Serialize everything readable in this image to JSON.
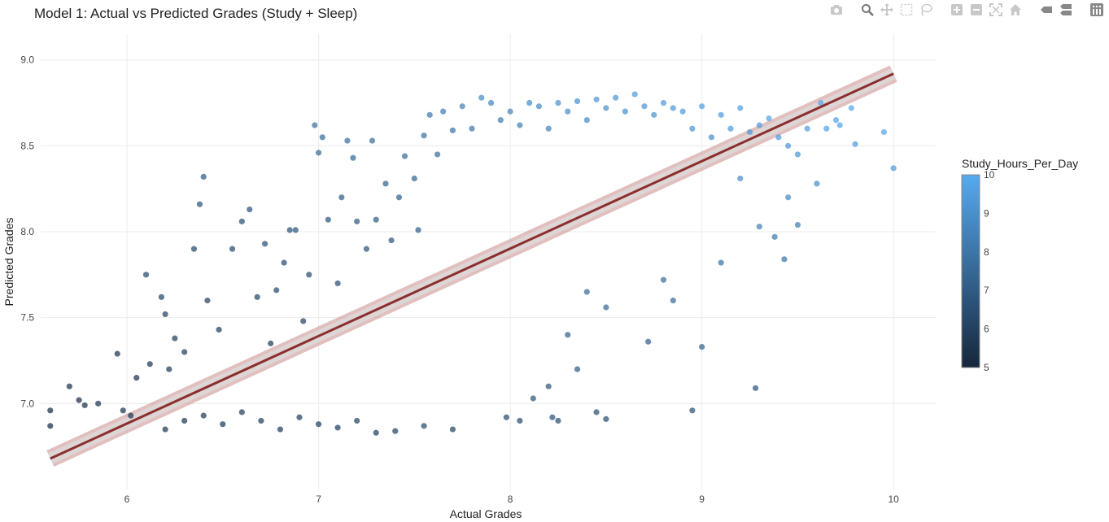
{
  "chart_data": {
    "type": "scatter",
    "title": "Model 1: Actual vs Predicted Grades (Study + Sleep)",
    "xlabel": "Actual Grades",
    "ylabel": "Predicted Grades",
    "xlim": [
      5.55,
      10.22
    ],
    "ylim": [
      6.5,
      9.15
    ],
    "x_ticks": [
      "6",
      "7",
      "8",
      "9",
      "10"
    ],
    "y_ticks": [
      "7.0",
      "7.5",
      "8.0",
      "8.5",
      "9.0"
    ],
    "grid": true,
    "colorbar": {
      "title": "Study_Hours_Per_Day",
      "range": [
        5,
        10
      ],
      "ticks": [
        "5",
        "6",
        "7",
        "8",
        "9",
        "10"
      ],
      "color_low": "#16263b",
      "color_high": "#56aaf0"
    },
    "trend_line": {
      "x": [
        5.6,
        10.0
      ],
      "y": [
        6.68,
        8.92
      ],
      "color": "#8b2e2e",
      "band_color": "#c98a8a"
    },
    "points": [
      [
        5.6,
        6.96,
        5.3
      ],
      [
        5.6,
        6.87,
        5.2
      ],
      [
        5.7,
        7.1,
        5.4
      ],
      [
        5.75,
        7.02,
        5.3
      ],
      [
        5.78,
        6.99,
        5.5
      ],
      [
        5.85,
        7.0,
        5.6
      ],
      [
        5.95,
        7.29,
        5.5
      ],
      [
        5.98,
        6.96,
        5.4
      ],
      [
        6.02,
        6.93,
        5.6
      ],
      [
        6.05,
        7.15,
        5.5
      ],
      [
        6.1,
        7.75,
        6.3
      ],
      [
        6.12,
        7.23,
        5.7
      ],
      [
        6.18,
        7.62,
        6.2
      ],
      [
        6.2,
        7.52,
        6.0
      ],
      [
        6.22,
        7.2,
        5.8
      ],
      [
        6.25,
        7.38,
        5.9
      ],
      [
        6.3,
        7.3,
        5.9
      ],
      [
        6.35,
        7.9,
        6.3
      ],
      [
        6.38,
        8.16,
        6.8
      ],
      [
        6.4,
        8.32,
        7.0
      ],
      [
        6.42,
        7.6,
        6.1
      ],
      [
        6.48,
        7.43,
        6.0
      ],
      [
        6.55,
        7.9,
        6.4
      ],
      [
        6.6,
        8.06,
        6.6
      ],
      [
        6.64,
        8.13,
        6.7
      ],
      [
        6.68,
        7.62,
        6.2
      ],
      [
        6.72,
        7.93,
        6.6
      ],
      [
        6.75,
        7.35,
        5.9
      ],
      [
        6.78,
        7.66,
        6.4
      ],
      [
        6.82,
        7.82,
        6.5
      ],
      [
        6.85,
        8.01,
        6.7
      ],
      [
        6.88,
        8.01,
        6.8
      ],
      [
        6.92,
        7.48,
        6.1
      ],
      [
        6.95,
        7.75,
        6.5
      ],
      [
        6.98,
        8.62,
        7.8
      ],
      [
        7.0,
        8.46,
        7.6
      ],
      [
        7.02,
        8.55,
        7.7
      ],
      [
        7.05,
        8.07,
        6.9
      ],
      [
        7.1,
        7.7,
        6.5
      ],
      [
        7.12,
        8.2,
        7.1
      ],
      [
        7.15,
        8.53,
        7.7
      ],
      [
        7.18,
        8.43,
        7.5
      ],
      [
        7.2,
        8.06,
        7.0
      ],
      [
        7.25,
        7.9,
        6.8
      ],
      [
        7.28,
        8.53,
        7.7
      ],
      [
        7.3,
        8.07,
        7.0
      ],
      [
        7.35,
        8.28,
        7.3
      ],
      [
        7.38,
        7.95,
        6.9
      ],
      [
        7.42,
        8.2,
        7.2
      ],
      [
        7.45,
        8.44,
        7.6
      ],
      [
        7.5,
        8.31,
        7.4
      ],
      [
        7.52,
        8.01,
        7.1
      ],
      [
        7.55,
        8.56,
        7.9
      ],
      [
        7.58,
        8.68,
        8.2
      ],
      [
        7.62,
        8.45,
        7.7
      ],
      [
        7.65,
        8.7,
        8.3
      ],
      [
        7.7,
        8.59,
        8.0
      ],
      [
        7.75,
        8.73,
        8.5
      ],
      [
        7.8,
        8.6,
        8.1
      ],
      [
        7.85,
        8.78,
        8.8
      ],
      [
        7.9,
        8.75,
        8.6
      ],
      [
        7.95,
        8.65,
        8.3
      ],
      [
        8.0,
        8.7,
        8.6
      ],
      [
        8.05,
        8.62,
        8.4
      ],
      [
        8.1,
        8.75,
        8.9
      ],
      [
        8.15,
        8.73,
        8.8
      ],
      [
        8.2,
        8.6,
        8.5
      ],
      [
        8.25,
        8.75,
        9.0
      ],
      [
        8.3,
        8.7,
        8.9
      ],
      [
        8.35,
        8.76,
        9.1
      ],
      [
        8.4,
        8.65,
        8.8
      ],
      [
        8.45,
        8.77,
        9.2
      ],
      [
        8.5,
        8.72,
        9.0
      ],
      [
        8.55,
        8.78,
        9.3
      ],
      [
        8.6,
        8.7,
        9.1
      ],
      [
        8.65,
        8.8,
        9.4
      ],
      [
        8.7,
        8.73,
        9.2
      ],
      [
        8.75,
        8.68,
        9.1
      ],
      [
        8.8,
        8.75,
        9.4
      ],
      [
        8.85,
        8.72,
        9.3
      ],
      [
        8.9,
        8.7,
        9.4
      ],
      [
        8.95,
        8.6,
        9.2
      ],
      [
        9.0,
        8.73,
        9.6
      ],
      [
        9.05,
        8.55,
        9.1
      ],
      [
        9.1,
        8.68,
        9.5
      ],
      [
        9.15,
        8.6,
        9.4
      ],
      [
        9.2,
        8.72,
        9.7
      ],
      [
        9.25,
        8.58,
        9.3
      ],
      [
        9.3,
        8.62,
        9.5
      ],
      [
        9.35,
        8.66,
        9.7
      ],
      [
        9.4,
        8.55,
        9.4
      ],
      [
        9.45,
        8.5,
        9.3
      ],
      [
        9.5,
        8.45,
        9.2
      ],
      [
        9.55,
        8.6,
        9.6
      ],
      [
        9.6,
        8.28,
        8.9
      ],
      [
        9.62,
        8.75,
        9.9
      ],
      [
        9.65,
        8.6,
        9.7
      ],
      [
        9.7,
        8.65,
        9.8
      ],
      [
        9.72,
        8.62,
        9.8
      ],
      [
        9.78,
        8.72,
        9.9
      ],
      [
        9.8,
        8.51,
        9.5
      ],
      [
        9.95,
        8.58,
        9.8
      ],
      [
        10.0,
        8.37,
        9.3
      ],
      [
        9.5,
        8.04,
        8.4
      ],
      [
        9.45,
        8.2,
        8.8
      ],
      [
        9.3,
        8.03,
        8.4
      ],
      [
        9.2,
        8.31,
        8.9
      ],
      [
        9.1,
        7.82,
        7.9
      ],
      [
        9.43,
        7.84,
        8.0
      ],
      [
        9.38,
        7.97,
        8.2
      ],
      [
        9.0,
        7.33,
        7.2
      ],
      [
        8.95,
        6.96,
        6.6
      ],
      [
        9.28,
        7.09,
        6.9
      ],
      [
        8.85,
        7.6,
        7.6
      ],
      [
        8.8,
        7.72,
        7.7
      ],
      [
        8.72,
        7.36,
        7.2
      ],
      [
        8.5,
        7.56,
        7.5
      ],
      [
        8.4,
        7.65,
        7.6
      ],
      [
        8.35,
        7.2,
        7.0
      ],
      [
        8.3,
        7.4,
        7.3
      ],
      [
        8.2,
        7.1,
        6.9
      ],
      [
        8.22,
        6.92,
        6.7
      ],
      [
        8.25,
        6.9,
        6.6
      ],
      [
        8.45,
        6.95,
        6.6
      ],
      [
        8.5,
        6.91,
        6.5
      ],
      [
        8.12,
        7.03,
        6.8
      ],
      [
        7.98,
        6.92,
        6.4
      ],
      [
        8.05,
        6.9,
        6.4
      ],
      [
        7.7,
        6.85,
        6.2
      ],
      [
        7.55,
        6.87,
        6.3
      ],
      [
        7.4,
        6.84,
        6.1
      ],
      [
        7.3,
        6.83,
        6.0
      ],
      [
        7.2,
        6.9,
        6.1
      ],
      [
        7.1,
        6.86,
        6.0
      ],
      [
        7.0,
        6.88,
        6.0
      ],
      [
        6.9,
        6.92,
        6.0
      ],
      [
        6.8,
        6.85,
        5.9
      ],
      [
        6.7,
        6.9,
        5.9
      ],
      [
        6.6,
        6.95,
        5.9
      ],
      [
        6.5,
        6.88,
        5.8
      ],
      [
        6.4,
        6.93,
        5.8
      ],
      [
        6.3,
        6.9,
        5.7
      ],
      [
        6.2,
        6.85,
        5.7
      ]
    ]
  },
  "modebar": {
    "icons": [
      "camera-icon",
      "zoom-icon",
      "pan-icon",
      "box-select-icon",
      "lasso-icon",
      "zoom-in-icon",
      "zoom-out-icon",
      "autoscale-icon",
      "home-icon",
      "hover-closest-icon",
      "hover-compare-icon",
      "plotly-logo-icon"
    ]
  }
}
